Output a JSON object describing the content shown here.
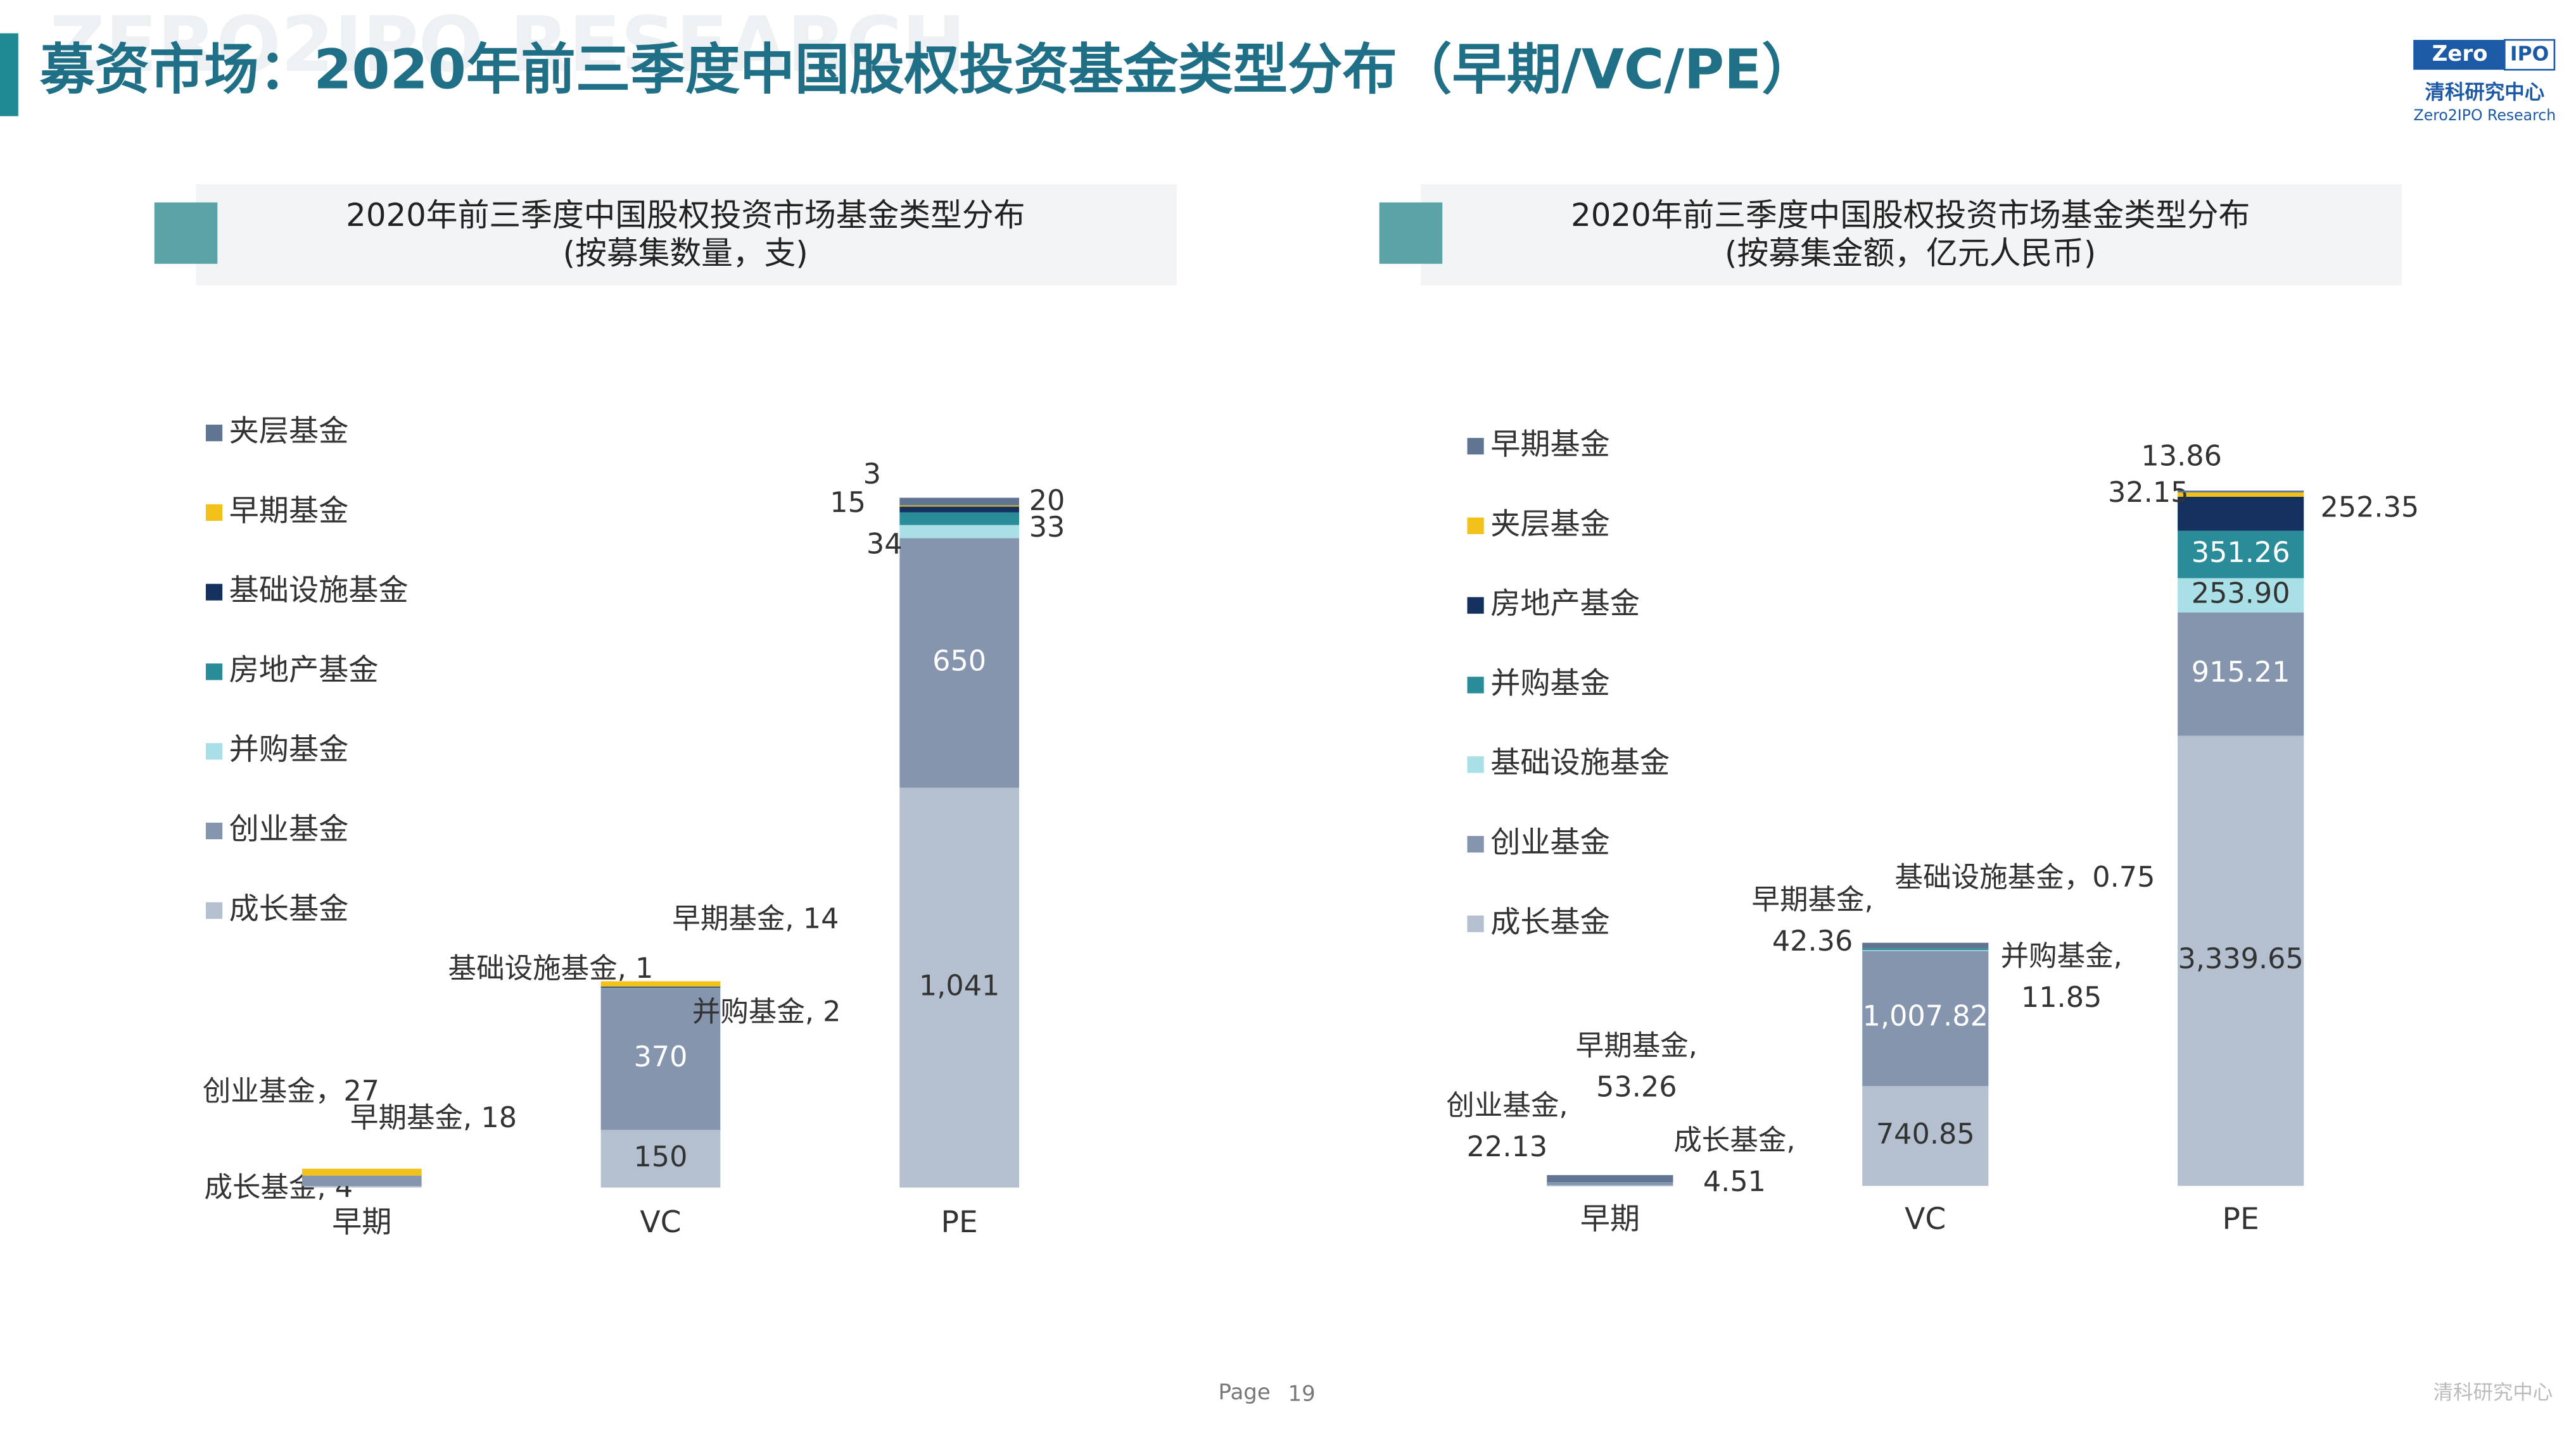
{
  "watermark": "ZERO2IPO RESEARCH",
  "title": "募资市场：2020年前三季度中国股权投资基金类型分布（早期/VC/PE）",
  "logo": {
    "brand_left": "Zero",
    "brand_right": "IPO",
    "name": "清科研究中心",
    "sub": "Zero2IPO Research"
  },
  "footer": {
    "page_label": "Page",
    "page_number": "19",
    "org": "清科研究中心"
  },
  "chart_data": [
    {
      "type": "stacked_bar",
      "title": "2020年前三季度中国股权投资市场基金类型分布",
      "subtitle": "(按募集数量，支)",
      "categories": [
        "早期",
        "VC",
        "PE"
      ],
      "ylim": [
        0,
        1900
      ],
      "series": [
        {
          "name": "成长基金",
          "color": "#b4c0d0",
          "values": [
            4,
            150,
            1041
          ],
          "value_labels": [
            "成长基金, 4",
            "150",
            "1,041"
          ]
        },
        {
          "name": "创业基金",
          "color": "#8595ae",
          "values": [
            27,
            370,
            650
          ],
          "value_labels": [
            "创业基金，27",
            "370",
            "650"
          ]
        },
        {
          "name": "并购基金",
          "color": "#a9e0e8",
          "values": [
            null,
            2,
            34
          ],
          "value_labels": [
            null,
            "并购基金, 2",
            "34"
          ]
        },
        {
          "name": "房地产基金",
          "color": "#2a8c99",
          "values": [
            null,
            null,
            33
          ],
          "value_labels": [
            null,
            null,
            "33"
          ]
        },
        {
          "name": "基础设施基金",
          "color": "#13305e",
          "values": [
            null,
            1,
            15
          ],
          "value_labels": [
            null,
            "基础设施基金, 1",
            "15"
          ]
        },
        {
          "name": "早期基金",
          "color": "#f2c21b",
          "values": [
            18,
            14,
            3
          ],
          "value_labels": [
            "早期基金, 18",
            "早期基金, 14",
            "3"
          ]
        },
        {
          "name": "夹层基金",
          "color": "#5f7591",
          "values": [
            null,
            null,
            20
          ],
          "value_labels": [
            null,
            null,
            "20"
          ]
        }
      ]
    },
    {
      "type": "stacked_bar",
      "title": "2020年前三季度中国股权投资市场基金类型分布",
      "subtitle": "(按募集金额，亿元人民币)",
      "categories": [
        "早期",
        "VC",
        "PE"
      ],
      "ylim": [
        0,
        5500
      ],
      "series": [
        {
          "name": "成长基金",
          "color": "#b4c0d0",
          "values": [
            4.51,
            740.85,
            3339.65
          ],
          "value_labels": [
            "成长基金,\n4.51",
            "740.85",
            "3,339.65"
          ]
        },
        {
          "name": "创业基金",
          "color": "#8595ae",
          "values": [
            22.13,
            1007.82,
            915.21
          ],
          "value_labels": [
            "创业基金,\n22.13",
            "1,007.82",
            "915.21"
          ]
        },
        {
          "name": "基础设施基金",
          "color": "#a9e0e8",
          "values": [
            null,
            0.75,
            253.9
          ],
          "value_labels": [
            null,
            "基础设施基金，0.75",
            "253.90"
          ]
        },
        {
          "name": "并购基金",
          "color": "#2a8c99",
          "values": [
            null,
            11.85,
            351.26
          ],
          "value_labels": [
            null,
            "并购基金,\n11.85",
            "351.26"
          ]
        },
        {
          "name": "房地产基金",
          "color": "#13305e",
          "values": [
            null,
            null,
            252.35
          ],
          "value_labels": [
            null,
            null,
            "252.35"
          ]
        },
        {
          "name": "夹层基金",
          "color": "#f2c21b",
          "values": [
            null,
            null,
            32.15
          ],
          "value_labels": [
            null,
            null,
            "32.15"
          ]
        },
        {
          "name": "早期基金",
          "color": "#5f7591",
          "values": [
            53.26,
            42.36,
            13.86
          ],
          "value_labels": [
            "早期基金,\n53.26",
            "早期基金,\n42.36",
            "13.86"
          ]
        }
      ]
    }
  ]
}
